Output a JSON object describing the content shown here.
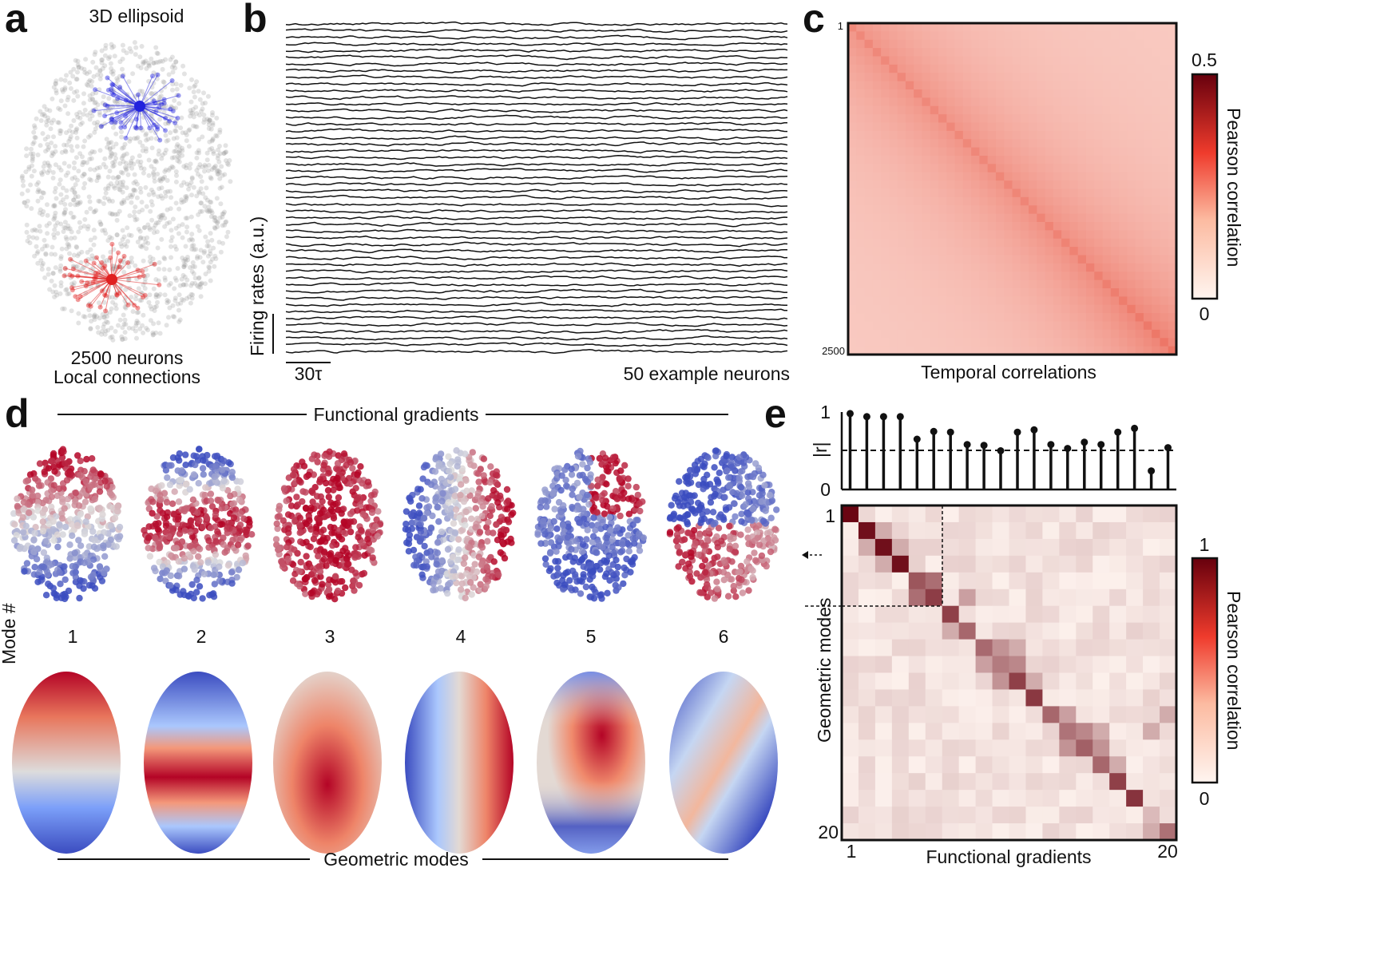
{
  "panels": {
    "a": {
      "label": "a",
      "title": "3D ellipsoid",
      "caption_line1": "2500 neurons",
      "caption_line2": "Local connections",
      "cloud_color": "#9a9a9a",
      "node1_color": "#2222dd",
      "node2_color": "#e02020"
    },
    "b": {
      "label": "b",
      "ylabel": "Firing rates (a.u.)",
      "scale_label": "30τ",
      "caption": "50 example neurons",
      "n_traces": 50
    },
    "c": {
      "label": "c",
      "caption": "Temporal correlations",
      "tick_first": "1",
      "tick_last": "2500",
      "colorbar_label": "Pearson correlation",
      "colorbar_max": "0.5",
      "colorbar_min": "0"
    },
    "d": {
      "label": "d",
      "top_title": "Functional gradients",
      "bottom_title": "Geometric modes",
      "mode_axis_label": "Mode #",
      "modes": [
        "1",
        "2",
        "3",
        "4",
        "5",
        "6"
      ]
    },
    "e": {
      "label": "e",
      "xlabel": "Functional gradients",
      "ylabel": "Geometric modes",
      "x_tick_first": "1",
      "x_tick_last": "20",
      "y_tick_first": "1",
      "y_tick_last": "20",
      "colorbar_label": "Pearson correlation",
      "colorbar_max": "1",
      "colorbar_min": "0",
      "stem_ylabel": "|r|",
      "stem_tick_top": "1",
      "stem_tick_bottom": "0"
    }
  },
  "chart_data": [
    {
      "type": "scatter",
      "panel": "a",
      "title": "3D ellipsoid",
      "n_neurons": 2500,
      "connection": "Local connections"
    },
    {
      "type": "line",
      "panel": "b",
      "series_count": 50,
      "ylabel": "Firing rates (a.u.)",
      "scalebar": "30τ",
      "caption": "50 example neurons"
    },
    {
      "type": "heatmap",
      "panel": "c",
      "xlabel": "Temporal correlations",
      "range": [
        1,
        2500
      ],
      "colorbar": {
        "label": "Pearson correlation",
        "min": 0,
        "max": 0.5
      },
      "diagonal_corner_value_top": 0.3,
      "diagonal_corner_value_bottom": 0.4,
      "background_value": 0.12
    },
    {
      "type": "bar",
      "panel": "e-top",
      "ylabel": "|r|",
      "categories": [
        1,
        2,
        3,
        4,
        5,
        6,
        7,
        8,
        9,
        10,
        11,
        12,
        13,
        14,
        15,
        16,
        17,
        18,
        19,
        20
      ],
      "values": [
        0.98,
        0.94,
        0.94,
        0.94,
        0.65,
        0.75,
        0.74,
        0.58,
        0.57,
        0.5,
        0.74,
        0.77,
        0.58,
        0.53,
        0.61,
        0.58,
        0.74,
        0.79,
        0.24,
        0.54
      ],
      "threshold": 0.5,
      "ylim": [
        0,
        1
      ]
    },
    {
      "type": "heatmap",
      "panel": "e",
      "xlabel": "Functional gradients",
      "ylabel": "Geometric modes",
      "size": 20,
      "colorbar": {
        "label": "Pearson correlation",
        "min": 0,
        "max": 1
      },
      "diagonal": [
        0.98,
        0.94,
        0.94,
        0.94,
        0.65,
        0.75,
        0.74,
        0.58,
        0.57,
        0.5,
        0.74,
        0.77,
        0.58,
        0.53,
        0.61,
        0.58,
        0.74,
        0.79,
        0.24,
        0.54
      ],
      "strong_offdiag": [
        [
          1,
          2,
          0.3
        ],
        [
          2,
          1,
          0.3
        ],
        [
          2,
          3,
          0.3
        ],
        [
          3,
          2,
          0.3
        ],
        [
          4,
          5,
          0.55
        ],
        [
          5,
          4,
          0.55
        ],
        [
          5,
          7,
          0.35
        ],
        [
          7,
          6,
          0.3
        ],
        [
          8,
          9,
          0.4
        ],
        [
          9,
          8,
          0.35
        ],
        [
          9,
          10,
          0.45
        ],
        [
          10,
          9,
          0.4
        ],
        [
          8,
          10,
          0.3
        ],
        [
          10,
          11,
          0.3
        ],
        [
          12,
          13,
          0.35
        ],
        [
          13,
          14,
          0.45
        ],
        [
          14,
          13,
          0.4
        ],
        [
          13,
          15,
          0.3
        ],
        [
          14,
          15,
          0.4
        ],
        [
          15,
          16,
          0.3
        ],
        [
          12,
          19,
          0.3
        ],
        [
          13,
          18,
          0.3
        ],
        [
          19,
          18,
          0.3
        ]
      ]
    }
  ]
}
